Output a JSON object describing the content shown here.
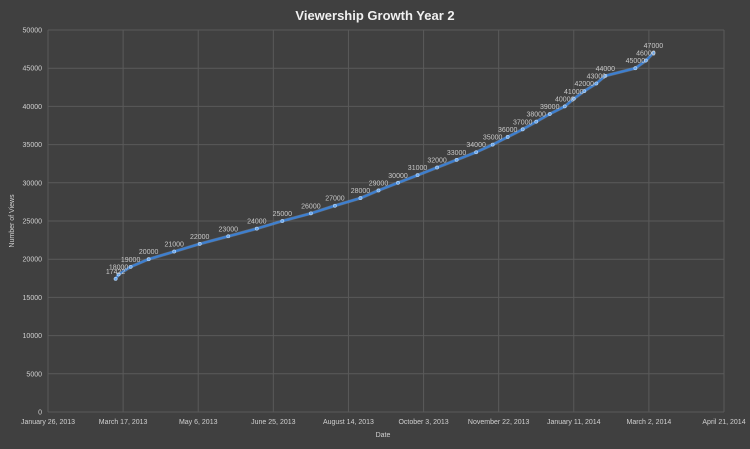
{
  "chart_data": {
    "type": "line",
    "title": "Viewership Growth Year 2",
    "xlabel": "Date",
    "ylabel": "Number of Views",
    "ylim": [
      0,
      50000
    ],
    "xlim": [
      "2013-01-26",
      "2014-04-21"
    ],
    "grid": true,
    "x_ticks": [
      "January 26, 2013",
      "March 17, 2013",
      "May 6, 2013",
      "June 25, 2013",
      "August 14, 2013",
      "October 3, 2013",
      "November 22, 2013",
      "January 11, 2014",
      "March 2, 2014",
      "April 21, 2014"
    ],
    "y_ticks": [
      "0",
      "5000",
      "10000",
      "15000",
      "20000",
      "25000",
      "30000",
      "35000",
      "40000",
      "45000",
      "50000"
    ],
    "series": [
      {
        "color": "#3d7fd0",
        "points": [
          {
            "x": "2013-03-12",
            "y": 17422,
            "label": "17422"
          },
          {
            "x": "2013-03-14",
            "y": 18000,
            "label": "18000"
          },
          {
            "x": "2013-03-22",
            "y": 19000,
            "label": "19000"
          },
          {
            "x": "2013-04-03",
            "y": 20000,
            "label": "20000"
          },
          {
            "x": "2013-04-20",
            "y": 21000,
            "label": "21000"
          },
          {
            "x": "2013-05-07",
            "y": 22000,
            "label": "22000"
          },
          {
            "x": "2013-05-26",
            "y": 23000,
            "label": "23000"
          },
          {
            "x": "2013-06-14",
            "y": 24000,
            "label": "24000"
          },
          {
            "x": "2013-07-01",
            "y": 25000,
            "label": "25000"
          },
          {
            "x": "2013-07-20",
            "y": 26000,
            "label": "26000"
          },
          {
            "x": "2013-08-05",
            "y": 27000,
            "label": "27000"
          },
          {
            "x": "2013-08-22",
            "y": 28000,
            "label": "28000"
          },
          {
            "x": "2013-09-03",
            "y": 29000,
            "label": "29000"
          },
          {
            "x": "2013-09-16",
            "y": 30000,
            "label": "30000"
          },
          {
            "x": "2013-09-29",
            "y": 31000,
            "label": "31000"
          },
          {
            "x": "2013-10-12",
            "y": 32000,
            "label": "32000"
          },
          {
            "x": "2013-10-25",
            "y": 33000,
            "label": "33000"
          },
          {
            "x": "2013-11-07",
            "y": 34000,
            "label": "34000"
          },
          {
            "x": "2013-11-18",
            "y": 35000,
            "label": "35000"
          },
          {
            "x": "2013-11-28",
            "y": 36000,
            "label": "36000"
          },
          {
            "x": "2013-12-08",
            "y": 37000,
            "label": "37000"
          },
          {
            "x": "2013-12-17",
            "y": 38000,
            "label": "38000"
          },
          {
            "x": "2013-12-26",
            "y": 39000,
            "label": "39000"
          },
          {
            "x": "2014-01-05",
            "y": 40000,
            "label": "40000"
          },
          {
            "x": "2014-01-11",
            "y": 41000,
            "label": "41000"
          },
          {
            "x": "2014-01-18",
            "y": 42000,
            "label": "42000"
          },
          {
            "x": "2014-01-26",
            "y": 43000,
            "label": "43000"
          },
          {
            "x": "2014-02-01",
            "y": 44000,
            "label": "44000"
          },
          {
            "x": "2014-02-21",
            "y": 45000,
            "label": "45000"
          },
          {
            "x": "2014-02-28",
            "y": 46000,
            "label": "46000"
          },
          {
            "x": "2014-03-05",
            "y": 47000,
            "label": "47000"
          }
        ]
      }
    ]
  }
}
